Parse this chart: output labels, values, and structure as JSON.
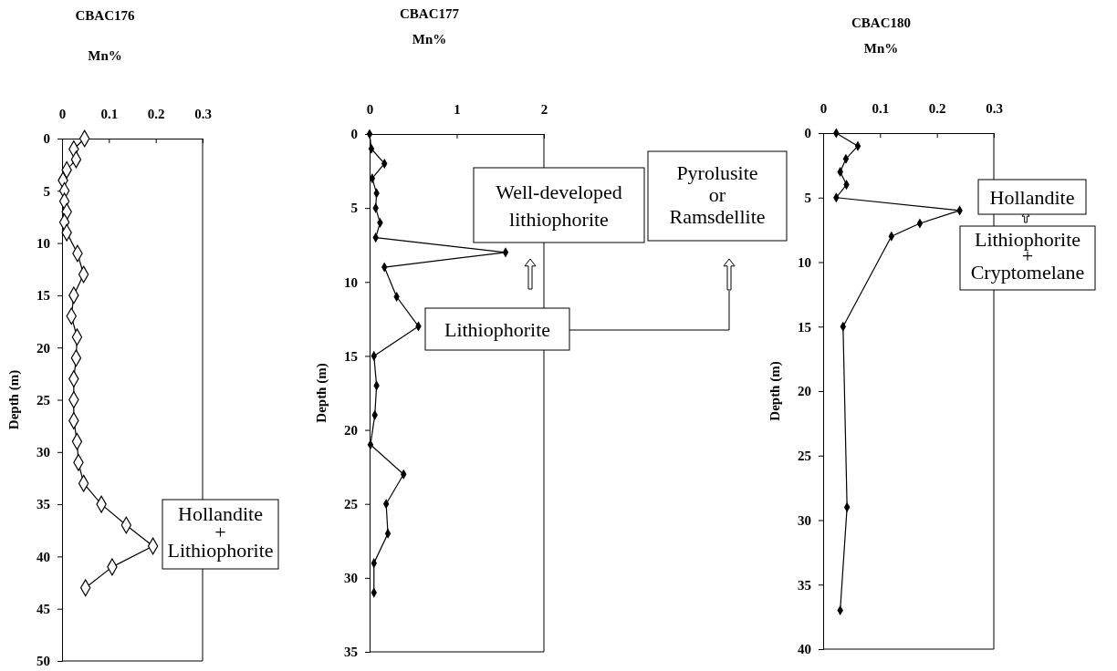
{
  "chart_data": [
    {
      "type": "line",
      "title": "CBAC176",
      "xlabel": "Mn%",
      "ylabel": "Depth (m)",
      "marker": "diamond",
      "line_style": "solid",
      "xlim": [
        0,
        0.3
      ],
      "xticks": [
        0,
        0.1,
        0.2,
        0.3
      ],
      "ylim": [
        50,
        0
      ],
      "yticks": [
        0,
        5,
        10,
        15,
        20,
        25,
        30,
        35,
        40,
        45,
        50
      ],
      "series": [
        {
          "color": "#000000",
          "x": [
            0.048,
            0.025,
            0.03,
            0.01,
            0.002,
            0.005,
            0.005,
            0.01,
            0.005,
            0.01,
            0.033,
            0.046,
            0.025,
            0.02,
            0.032,
            0.03,
            0.025,
            0.025,
            0.025,
            0.032,
            0.035,
            0.046,
            0.084,
            0.137,
            0.194,
            0.107,
            0.05
          ],
          "values": [
            0,
            1,
            2,
            3,
            4,
            5,
            6,
            7,
            8,
            9,
            11,
            13,
            15,
            17,
            19,
            21,
            23,
            25,
            27,
            29,
            31,
            33,
            35,
            37,
            39,
            41,
            43
          ]
        }
      ],
      "annotations": [
        "Hollandite\n+\nLithiophorite"
      ]
    },
    {
      "type": "line",
      "title": "CBAC177",
      "xlabel": "Mn%",
      "ylabel": "Depth (m)",
      "marker": "diamond",
      "line_style": "solid",
      "xlim": [
        0,
        2
      ],
      "xticks": [
        0,
        1,
        2
      ],
      "ylim": [
        35,
        0
      ],
      "yticks": [
        0,
        5,
        10,
        15,
        20,
        25,
        30,
        35
      ],
      "series": [
        {
          "color": "#000000",
          "x": [
            0.0,
            0.02,
            0.17,
            0.03,
            0.08,
            0.07,
            0.12,
            0.07,
            1.56,
            0.17,
            0.31,
            0.56,
            0.05,
            0.08,
            0.06,
            0.01,
            0.39,
            0.19,
            0.21,
            0.05,
            0.05
          ],
          "values": [
            0,
            1,
            2,
            3,
            4,
            5,
            6,
            7,
            8,
            9,
            11,
            13,
            15,
            17,
            19,
            21,
            23,
            25,
            27,
            29,
            31
          ]
        }
      ],
      "annotations": [
        "Well-developed\nlithiophorite",
        "Pyrolusite\nor\nRamsdellite",
        "Lithiophorite"
      ]
    },
    {
      "type": "line",
      "title": "CBAC180",
      "xlabel": "Mn%",
      "ylabel": "Depth (m)",
      "marker": "diamond",
      "line_style": "solid",
      "xlim": [
        0,
        0.3
      ],
      "xticks": [
        0,
        0.1,
        0.2,
        0.3
      ],
      "ylim": [
        40,
        0
      ],
      "yticks": [
        0,
        5,
        10,
        15,
        20,
        25,
        30,
        35,
        40
      ],
      "series": [
        {
          "color": "#000000",
          "x": [
            0.023,
            0.061,
            0.04,
            0.03,
            0.041,
            0.023,
            0.24,
            0.17,
            0.12,
            0.035,
            0.042,
            0.03
          ],
          "values": [
            0,
            1,
            2,
            3,
            4,
            5,
            6,
            7,
            8,
            15,
            29,
            37
          ]
        }
      ],
      "annotations": [
        "Hollandite",
        "Lithiophorite\n+\nCryptomelane"
      ]
    }
  ]
}
